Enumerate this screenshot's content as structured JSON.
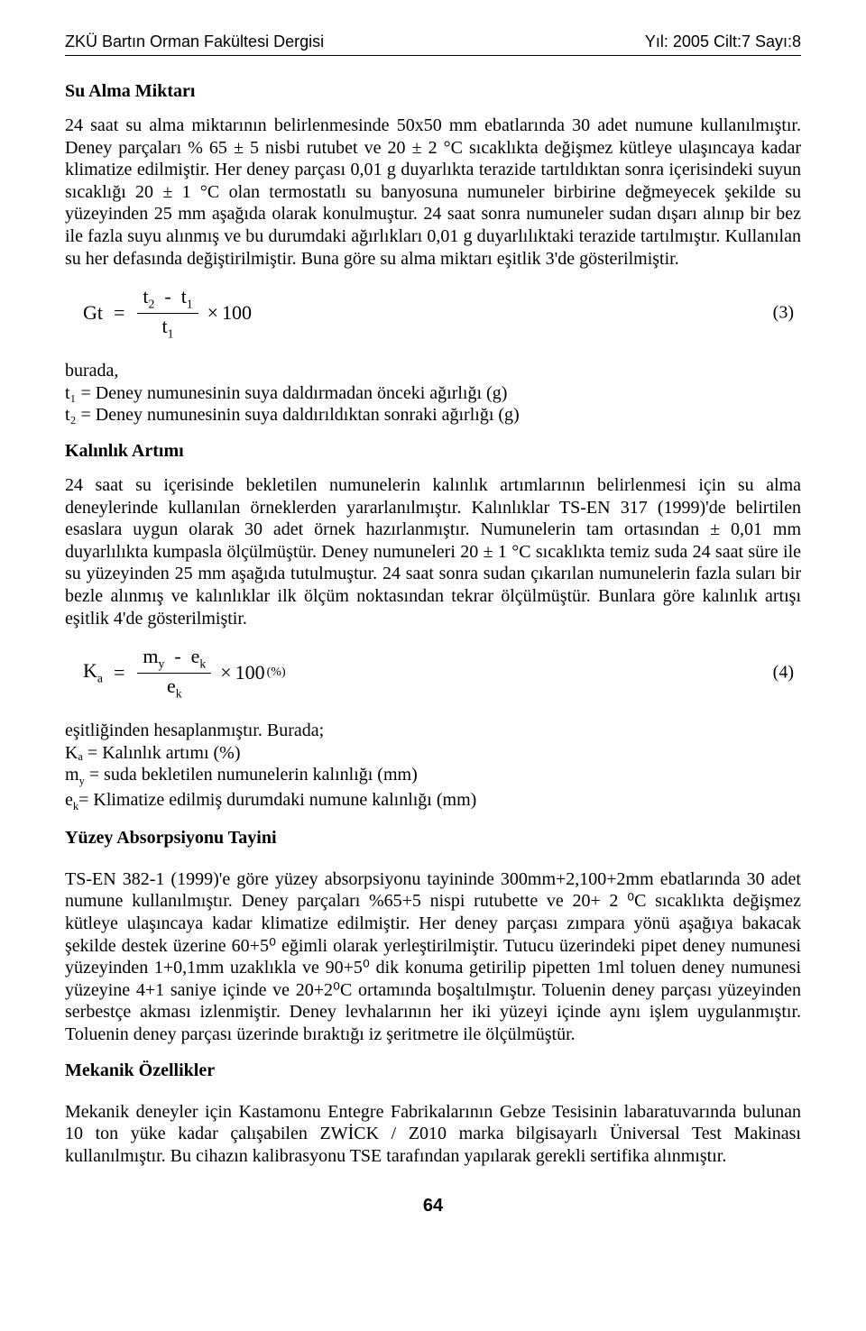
{
  "header": {
    "left": "ZKÜ Bartın Orman Fakültesi Dergisi",
    "right": "Yıl: 2005 Cilt:7 Sayı:8"
  },
  "sections": {
    "s1_title": "Su Alma Miktarı",
    "s1_body": "24  saat su alma miktarının belirlenmesinde 50x50 mm ebatlarında 30 adet numune kullanılmıştır. Deney parçaları % 65 ± 5 nisbi rutubet ve 20 ± 2 °C sıcaklıkta değişmez kütleye ulaşıncaya kadar klimatize edilmiştir. Her deney parçası 0,01 g duyarlıkta terazide tartıldıktan sonra içerisindeki suyun sıcaklığı 20 ± 1 °C olan termostatlı su banyosuna numuneler birbirine değmeyecek şekilde su yüzeyinden 25 mm aşağıda olarak konulmuştur. 24 saat sonra numuneler sudan dışarı alınıp bir bez ile fazla suyu alınmış ve bu durumdaki ağırlıkları 0,01 g duyarlılıktaki terazide tartılmıştır. Kullanılan su her defasında değiştirilmiştir. Buna göre su alma miktarı eşitlik 3'de gösterilmiştir.",
    "s1_where_intro": "burada,",
    "s1_where_t1": "t₁ = Deney numunesinin suya daldırmadan önceki ağırlığı (g)",
    "s1_where_t2": "t₂ = Deney numunesinin suya daldırıldıktan sonraki ağırlığı (g)",
    "s2_title": "Kalınlık Artımı",
    "s2_body": "24 saat su içerisinde bekletilen numunelerin kalınlık artımlarının belirlenmesi için su alma deneylerinde kullanılan örneklerden yararlanılmıştır. Kalınlıklar TS-EN 317 (1999)'de belirtilen esaslara uygun olarak 30 adet örnek hazırlanmıştır. Numunelerin tam ortasından ± 0,01 mm duyarlılıkta kumpasla ölçülmüştür. Deney numuneleri 20 ± 1 °C sıcaklıkta temiz suda 24 saat süre ile su yüzeyinden 25 mm aşağıda tutulmuştur. 24 saat sonra sudan çıkarılan numunelerin fazla suları bir bezle alınmış ve kalınlıklar ilk ölçüm noktasından tekrar ölçülmüştür. Bunlara göre kalınlık artışı eşitlik 4'de gösterilmiştir.",
    "s2_where_intro": "eşitliğinden hesaplanmıştır. Burada;",
    "s2_where_ka": "Kₐ = Kalınlık artımı (%)",
    "s2_where_my": "m_y = suda bekletilen numunelerin kalınlığı (mm)",
    "s2_where_ek": "e_k= Klimatize edilmiş durumdaki numune kalınlığı (mm)",
    "s3_title": "Yüzey Absorpsiyonu Tayini",
    "s3_body": "TS-EN 382-1 (1999)'e göre yüzey absorpsiyonu tayininde 300mm+2,100+2mm ebatlarında 30 adet numune kullanılmıştır. Deney parçaları %65+5 nispi rutubette ve 20+ 2 ⁰C sıcaklıkta değişmez kütleye ulaşıncaya kadar klimatize edilmiştir. Her deney parçası zımpara yönü aşağıya bakacak şekilde destek üzerine 60+5⁰ eğimli olarak yerleştirilmiştir. Tutucu üzerindeki pipet deney numunesi yüzeyinden 1+0,1mm uzaklıkla ve 90+5⁰ dik konuma getirilip pipetten 1ml toluen deney numunesi yüzeyine 4+1 saniye içinde ve 20+2⁰C ortamında boşaltılmıştır. Toluenin deney parçası yüzeyinden serbestçe akması izlenmiştir. Deney levhalarının her iki yüzeyi içinde aynı işlem uygulanmıştır.  Toluenin deney parçası üzerinde bıraktığı iz şeritmetre ile ölçülmüştür.",
    "s4_title": "Mekanik Özellikler",
    "s4_body": "Mekanik deneyler için Kastamonu Entegre Fabrikalarının Gebze Tesisinin labaratuvarında bulunan 10 ton yüke kadar çalışabilen ZWİCK / Z010 marka bilgisayarlı Üniversal Test Makinası kullanılmıştır. Bu cihazın kalibrasyonu TSE tarafından yapılarak gerekli sertifika alınmıştır."
  },
  "equations": {
    "eq3": {
      "lhs": "Gt",
      "num_a": "t",
      "num_a_sub": "2",
      "num_b": "t",
      "num_b_sub": "1",
      "den": "t",
      "den_sub": "1",
      "tail": "100",
      "number": "(3)"
    },
    "eq4": {
      "lhs": "K",
      "lhs_sub": "a",
      "num_a": "m",
      "num_a_sub": "y",
      "num_b": "e",
      "num_b_sub": "k",
      "den": "e",
      "den_sub": "k",
      "tail": "100",
      "pct": "(%)",
      "number": "(4)"
    }
  },
  "page_number": "64"
}
